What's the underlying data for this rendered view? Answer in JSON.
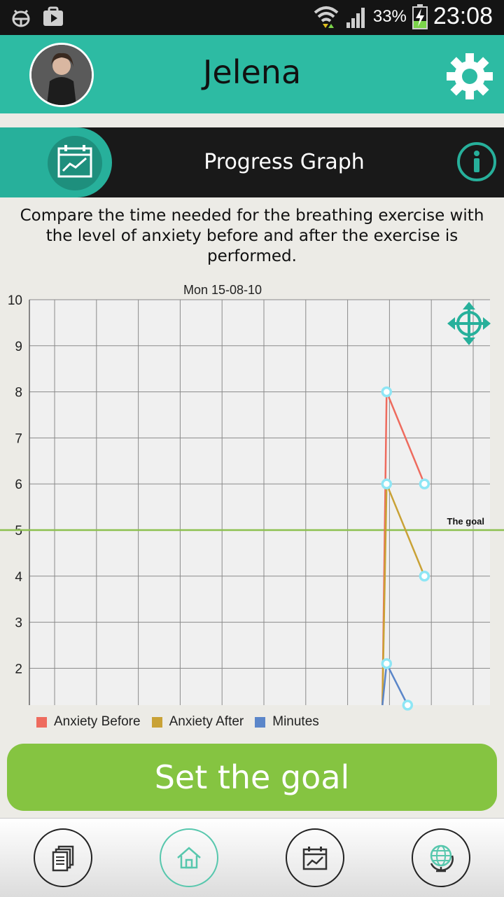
{
  "status_bar": {
    "battery_percent": "33%",
    "time": "23:08",
    "icons": [
      "android-debug-icon",
      "play-store-icon",
      "wifi-icon",
      "signal-icon",
      "battery-charging-icon"
    ]
  },
  "header": {
    "user_name": "Jelena",
    "avatar_icon": "profile-photo",
    "settings_icon": "gear-icon"
  },
  "section": {
    "title": "Progress Graph",
    "icon": "progress-graph-icon",
    "info_icon": "info-icon"
  },
  "description": "Compare the time needed for the breathing exercise with the level of anxiety before and after the exercise is performed.",
  "chart_data": {
    "type": "line",
    "title": "Mon 15-08-10",
    "y_ticks": [
      "10",
      "9",
      "8",
      "7",
      "6",
      "5",
      "4",
      "3",
      "2"
    ],
    "ylim": [
      1.2,
      10
    ],
    "goal": {
      "label": "The goal",
      "value": 5
    },
    "series": [
      {
        "name": "Anxiety Before",
        "color": "#ee6b5e",
        "x": [
          8.5,
          9.4
        ],
        "y": [
          8,
          6
        ]
      },
      {
        "name": "Anxiety After",
        "color": "#c9a236",
        "x": [
          8.5,
          9.4
        ],
        "y": [
          6,
          4
        ]
      },
      {
        "name": "Minutes",
        "color": "#5b86c9",
        "x": [
          8.5,
          9.0
        ],
        "y": [
          2.1,
          1.2
        ]
      }
    ],
    "lead_in_x": 8.4
  },
  "legend": [
    {
      "label": "Anxiety Before",
      "color": "#ee6b5e"
    },
    {
      "label": "Anxiety After",
      "color": "#c9a236"
    },
    {
      "label": "Minutes",
      "color": "#5b86c9"
    }
  ],
  "goal_button": {
    "label": "Set the goal"
  },
  "bottom_nav": [
    {
      "name": "documents",
      "icon": "documents-icon",
      "active": false
    },
    {
      "name": "home",
      "icon": "home-icon",
      "active": true
    },
    {
      "name": "progress",
      "icon": "progress-chart-icon",
      "active": false
    },
    {
      "name": "world",
      "icon": "globe-icon",
      "active": false
    }
  ],
  "colors": {
    "header": "#2dbba3",
    "accent": "#27b09b",
    "goal_green": "#85c441",
    "marker": "#8ee6f5"
  }
}
